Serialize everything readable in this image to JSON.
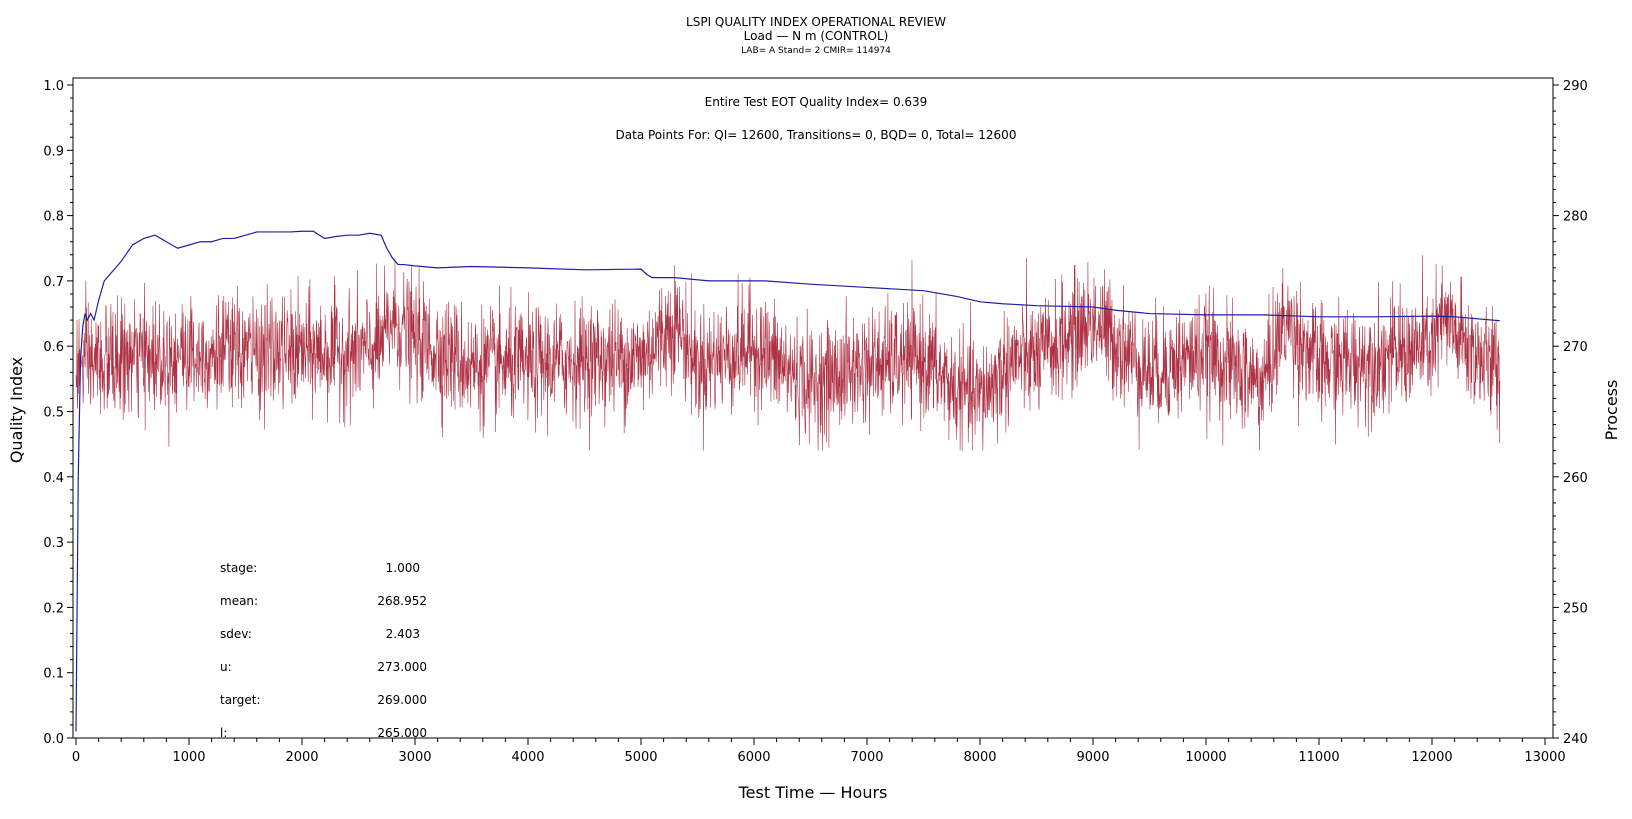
{
  "header": {
    "title": "LSPI QUALITY INDEX OPERATIONAL REVIEW",
    "subtitle": "Load — N m (CONTROL)",
    "meta": "LAB= A Stand= 2 CMIR= 114974"
  },
  "annotations": {
    "eot": "Entire Test EOT Quality Index=   0.639",
    "datapoints": "Data Points For: QI=  12600, Transitions=      0, BQD=      0, Total=  12600"
  },
  "stats": [
    {
      "label": "stage:",
      "value": "1.000"
    },
    {
      "label": "mean:",
      "value": "268.952"
    },
    {
      "label": "sdev:",
      "value": "2.403"
    },
    {
      "label": "u:",
      "value": "273.000"
    },
    {
      "label": "target:",
      "value": "269.000"
    },
    {
      "label": "l:",
      "value": "265.000"
    }
  ],
  "colors": {
    "process": "#a51c30",
    "quality_index": "#2020a0"
  },
  "chart_data": {
    "type": "line",
    "xlabel": "Test Time — Hours",
    "ylabel": "Quality Index",
    "y2label": "Process",
    "xlim": [
      0,
      13000
    ],
    "ylim": [
      0.0,
      1.0
    ],
    "y2lim": [
      240,
      290
    ],
    "xticks": [
      "0",
      "1000",
      "2000",
      "3000",
      "4000",
      "5000",
      "6000",
      "7000",
      "8000",
      "9000",
      "10000",
      "11000",
      "12000",
      "13000"
    ],
    "yticks": [
      "0.0",
      "0.1",
      "0.2",
      "0.3",
      "0.4",
      "0.5",
      "0.6",
      "0.7",
      "0.8",
      "0.9",
      "1.0"
    ],
    "y2ticks": [
      "240",
      "250",
      "260",
      "270",
      "280",
      "290"
    ],
    "grid": false,
    "series": [
      {
        "axis": "left",
        "x": [
          0,
          20,
          40,
          60,
          80,
          100,
          130,
          160,
          200,
          250,
          300,
          350,
          400,
          500,
          600,
          700,
          800,
          900,
          1000,
          1100,
          1200,
          1300,
          1400,
          1500,
          1600,
          1700,
          1800,
          1900,
          2000,
          2100,
          2200,
          2300,
          2400,
          2500,
          2600,
          2700,
          2750,
          2800,
          2850,
          2900,
          3000,
          3200,
          3500,
          4000,
          4500,
          5000,
          5050,
          5100,
          5300,
          5600,
          5900,
          6100,
          6500,
          7000,
          7500,
          7800,
          8000,
          8200,
          8500,
          9000,
          9200,
          9500,
          10000,
          10200,
          10500,
          11000,
          11500,
          12000,
          12200,
          12600
        ],
        "y": [
          0.01,
          0.4,
          0.58,
          0.63,
          0.65,
          0.64,
          0.65,
          0.64,
          0.67,
          0.7,
          0.71,
          0.72,
          0.73,
          0.755,
          0.765,
          0.77,
          0.76,
          0.75,
          0.755,
          0.76,
          0.76,
          0.765,
          0.765,
          0.77,
          0.775,
          0.775,
          0.775,
          0.775,
          0.776,
          0.776,
          0.765,
          0.768,
          0.77,
          0.77,
          0.773,
          0.77,
          0.75,
          0.735,
          0.725,
          0.725,
          0.723,
          0.72,
          0.722,
          0.72,
          0.717,
          0.718,
          0.71,
          0.705,
          0.705,
          0.7,
          0.7,
          0.7,
          0.695,
          0.69,
          0.685,
          0.676,
          0.668,
          0.665,
          0.662,
          0.66,
          0.655,
          0.65,
          0.648,
          0.648,
          0.648,
          0.645,
          0.645,
          0.646,
          0.645,
          0.639
        ]
      },
      {
        "axis": "right",
        "x_start": 0,
        "x_end": 12600,
        "points": 12600,
        "mean": 268.952,
        "sdev": 2.403,
        "x": [
          0,
          500,
          1000,
          1500,
          2000,
          2500,
          2700,
          2800,
          3000,
          3500,
          4000,
          4500,
          5000,
          5300,
          5500,
          6000,
          6500,
          7000,
          7500,
          7800,
          8000,
          8300,
          8500,
          9000,
          9500,
          10000,
          10500,
          10700,
          11000,
          11500,
          12000,
          12100,
          12300,
          12600
        ],
        "y": [
          268.5,
          269,
          269.5,
          269.5,
          269.5,
          269.5,
          270,
          272,
          270.5,
          268.5,
          268.5,
          269,
          269,
          272,
          268.5,
          270,
          267,
          268.5,
          269,
          266.5,
          266,
          269,
          269,
          272,
          268,
          269.5,
          267,
          272,
          268.5,
          269,
          270,
          272,
          270,
          268
        ]
      }
    ]
  }
}
